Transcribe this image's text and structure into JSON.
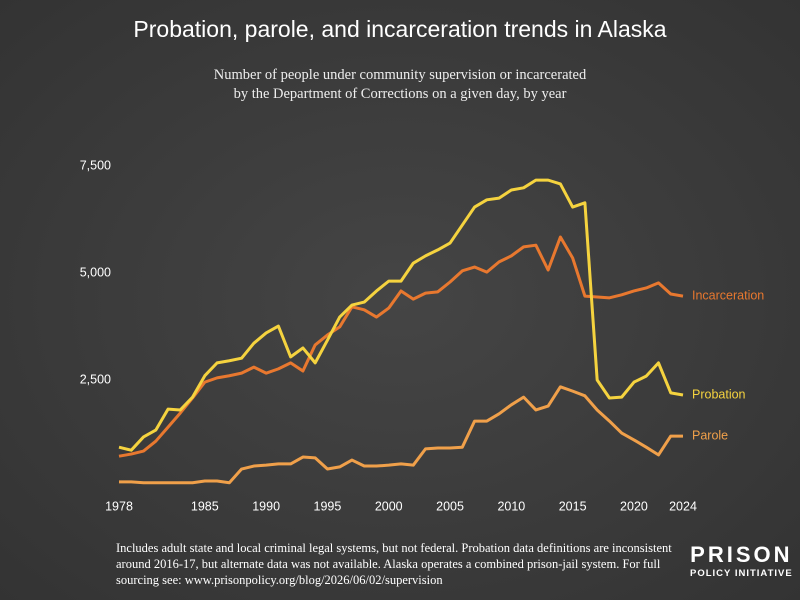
{
  "chart_data": {
    "type": "line",
    "title": "Probation, parole, and incarceration trends in Alaska",
    "subtitle": [
      "Number of people under community supervision or incarcerated",
      "by the Department of Corrections on a given day, by year"
    ],
    "x": [
      1978,
      1979,
      1980,
      1981,
      1982,
      1983,
      1984,
      1985,
      1986,
      1987,
      1988,
      1989,
      1990,
      1991,
      1992,
      1993,
      1994,
      1995,
      1996,
      1997,
      1998,
      1999,
      2000,
      2001,
      2002,
      2003,
      2004,
      2005,
      2006,
      2007,
      2008,
      2009,
      2010,
      2011,
      2012,
      2013,
      2014,
      2015,
      2016,
      2017,
      2018,
      2019,
      2020,
      2021,
      2022,
      2023,
      2024
    ],
    "series": [
      {
        "name": "Incarceration",
        "color": "#e8782f",
        "values": [
          720,
          770,
          840,
          1070,
          1400,
          1730,
          2080,
          2450,
          2550,
          2600,
          2660,
          2800,
          2660,
          2760,
          2900,
          2710,
          3320,
          3550,
          3740,
          4210,
          4140,
          3970,
          4180,
          4580,
          4390,
          4530,
          4560,
          4790,
          5050,
          5140,
          5020,
          5260,
          5400,
          5610,
          5650,
          5070,
          5840,
          5350,
          4460,
          4440,
          4420,
          4490,
          4580,
          4650,
          4770,
          4510,
          4460
        ]
      },
      {
        "name": "Probation",
        "color": "#f5d33f",
        "values": [
          930,
          860,
          1170,
          1330,
          1820,
          1800,
          2100,
          2600,
          2900,
          2950,
          3010,
          3360,
          3600,
          3760,
          3040,
          3250,
          2900,
          3430,
          3970,
          4250,
          4320,
          4580,
          4810,
          4810,
          5230,
          5400,
          5540,
          5700,
          6120,
          6540,
          6710,
          6750,
          6940,
          6990,
          7170,
          7170,
          7080,
          6540,
          6640,
          2500,
          2080,
          2100,
          2450,
          2590,
          2900,
          2200,
          2150
        ]
      },
      {
        "name": "Parole",
        "color": "#f0a04a",
        "values": [
          120,
          120,
          100,
          100,
          100,
          100,
          100,
          140,
          140,
          100,
          420,
          490,
          510,
          540,
          540,
          700,
          680,
          420,
          470,
          630,
          490,
          490,
          510,
          540,
          510,
          890,
          910,
          910,
          930,
          1540,
          1540,
          1710,
          1920,
          2100,
          1800,
          1890,
          2340,
          2240,
          2130,
          1800,
          1540,
          1260,
          1100,
          930,
          750,
          1190,
          1190
        ]
      }
    ],
    "xlim": [
      1978,
      2024
    ],
    "xticks": [
      1978,
      1985,
      1990,
      1995,
      2000,
      2005,
      2010,
      2015,
      2020,
      2024
    ],
    "ylim": [
      0,
      7500
    ],
    "yticks": [
      {
        "value": 2500,
        "label": "2,500"
      },
      {
        "value": 5000,
        "label": "5,000"
      },
      {
        "value": 7500,
        "label": "7,500"
      }
    ],
    "note": "Includes adult state and local criminal legal systems, but not federal. Probation data definitions are inconsistent around 2016-17, but alternate data was not available. Alaska operates a combined prison-jail system. For full sourcing see: www.prisonpolicy.org/blog/2026/06/02/supervision",
    "logo": [
      "PRISON",
      "POLICY INITIATIVE"
    ]
  }
}
